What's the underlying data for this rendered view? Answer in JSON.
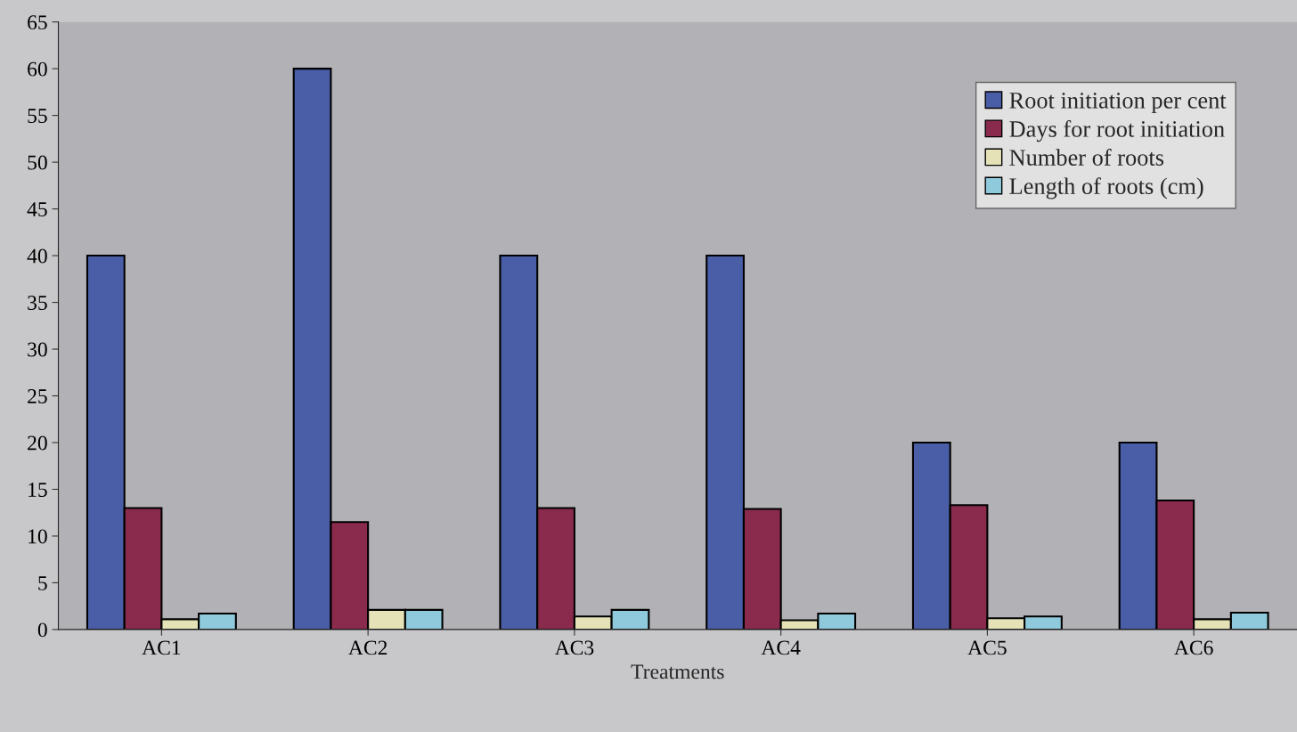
{
  "chart_data": {
    "type": "bar",
    "xlabel": "Treatments",
    "categories": [
      "AC1",
      "AC2",
      "AC3",
      "AC4",
      "AC5",
      "AC6"
    ],
    "series": [
      {
        "name": "Root initiation per cent",
        "color": "#4a5ea8",
        "values": [
          40,
          60,
          40,
          40,
          20,
          20
        ]
      },
      {
        "name": "Days for root initiation",
        "color": "#8a2a4c",
        "values": [
          13,
          11.5,
          13,
          12.9,
          13.3,
          13.8
        ]
      },
      {
        "name": "Number of roots",
        "color": "#e6e2b8",
        "values": [
          1.1,
          2.1,
          1.4,
          1.0,
          1.2,
          1.1
        ]
      },
      {
        "name": "Length of roots (cm)",
        "color": "#8ecadb",
        "values": [
          1.7,
          2.1,
          2.1,
          1.7,
          1.4,
          1.8
        ]
      }
    ],
    "ylim": [
      0,
      65
    ],
    "yticks": [
      0,
      5,
      10,
      15,
      20,
      25,
      30,
      35,
      40,
      45,
      50,
      55,
      60,
      65
    ],
    "grid": false,
    "legend": "top right"
  }
}
